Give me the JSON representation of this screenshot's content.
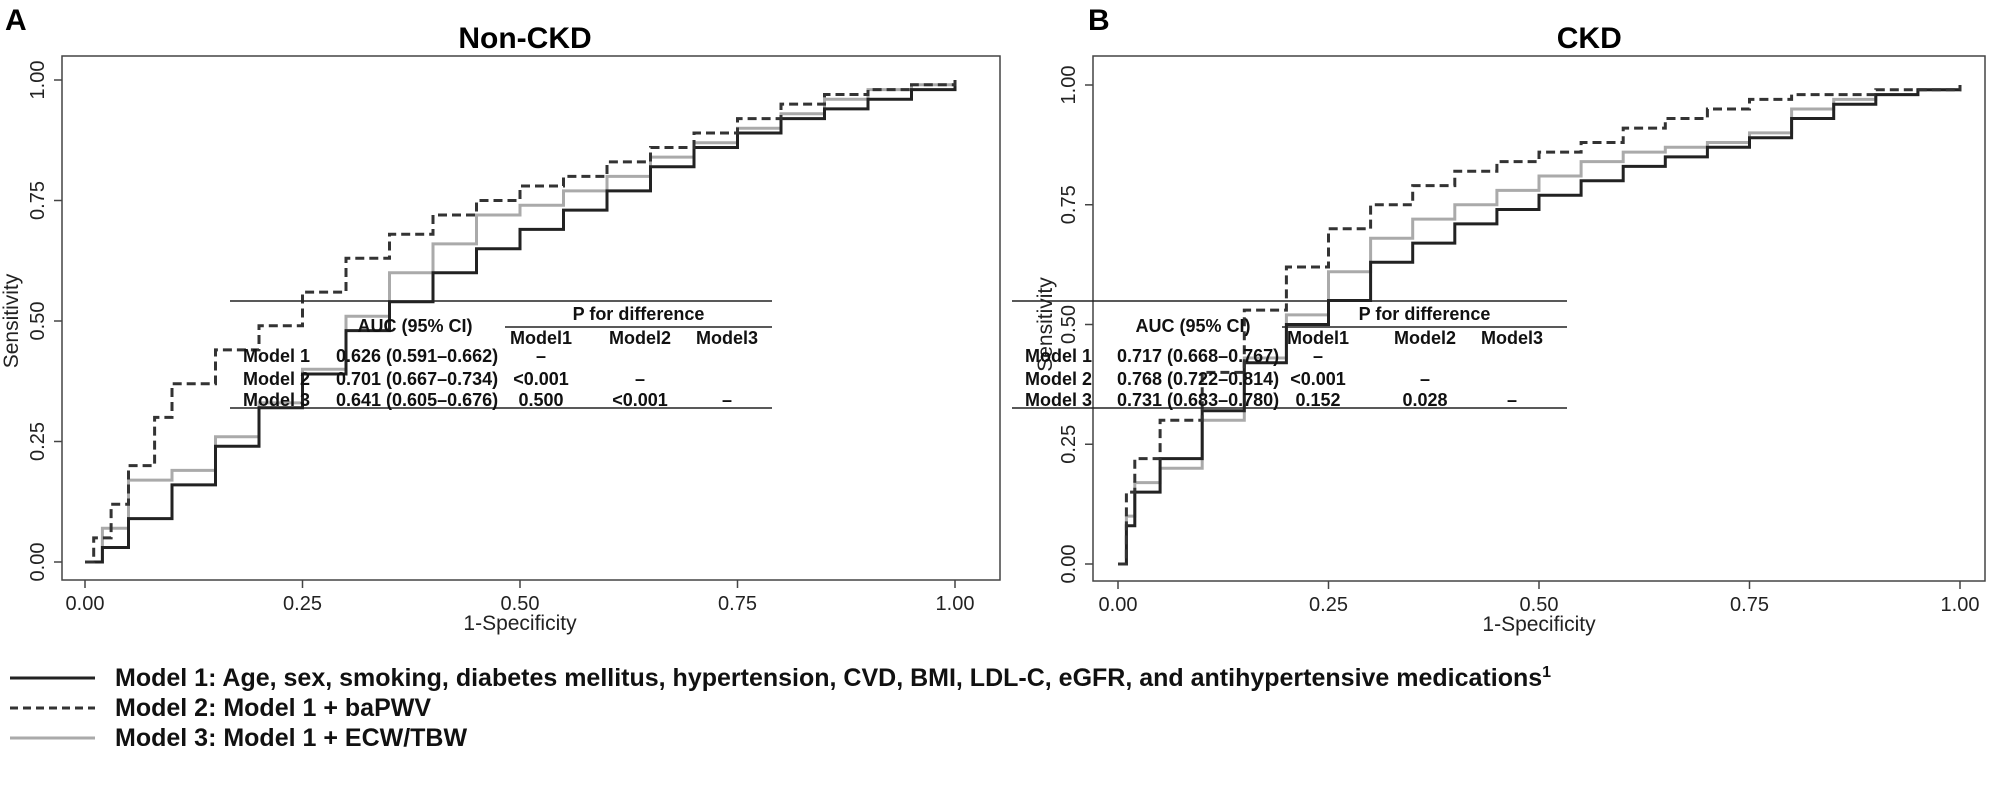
{
  "chart_data": [
    {
      "panel": "A",
      "type": "line",
      "title": "Non-CKD",
      "xlabel": "1-Specificity",
      "ylabel": "Sensitivity",
      "xlim": [
        0,
        1
      ],
      "ylim": [
        0,
        1
      ],
      "xticks": [
        "0.00",
        "0.25",
        "0.50",
        "0.75",
        "1.00"
      ],
      "yticks": [
        "0.00",
        "0.25",
        "0.50",
        "0.75",
        "1.00"
      ],
      "grid": false,
      "series": [
        {
          "name": "Model 1",
          "style": "solid",
          "color": "#222222",
          "points": [
            [
              0,
              0
            ],
            [
              0.02,
              0.03
            ],
            [
              0.05,
              0.09
            ],
            [
              0.1,
              0.16
            ],
            [
              0.15,
              0.24
            ],
            [
              0.2,
              0.32
            ],
            [
              0.25,
              0.39
            ],
            [
              0.3,
              0.48
            ],
            [
              0.35,
              0.54
            ],
            [
              0.4,
              0.6
            ],
            [
              0.45,
              0.65
            ],
            [
              0.5,
              0.69
            ],
            [
              0.55,
              0.73
            ],
            [
              0.6,
              0.77
            ],
            [
              0.65,
              0.82
            ],
            [
              0.7,
              0.86
            ],
            [
              0.75,
              0.89
            ],
            [
              0.8,
              0.92
            ],
            [
              0.85,
              0.94
            ],
            [
              0.9,
              0.96
            ],
            [
              0.95,
              0.98
            ],
            [
              1,
              1
            ]
          ]
        },
        {
          "name": "Model 2",
          "style": "dashed",
          "color": "#333333",
          "points": [
            [
              0,
              0
            ],
            [
              0.01,
              0.05
            ],
            [
              0.03,
              0.12
            ],
            [
              0.05,
              0.2
            ],
            [
              0.08,
              0.3
            ],
            [
              0.1,
              0.37
            ],
            [
              0.15,
              0.44
            ],
            [
              0.2,
              0.49
            ],
            [
              0.25,
              0.56
            ],
            [
              0.3,
              0.63
            ],
            [
              0.35,
              0.68
            ],
            [
              0.4,
              0.72
            ],
            [
              0.45,
              0.75
            ],
            [
              0.5,
              0.78
            ],
            [
              0.55,
              0.8
            ],
            [
              0.6,
              0.83
            ],
            [
              0.65,
              0.86
            ],
            [
              0.7,
              0.89
            ],
            [
              0.75,
              0.92
            ],
            [
              0.8,
              0.95
            ],
            [
              0.85,
              0.97
            ],
            [
              0.9,
              0.98
            ],
            [
              0.95,
              0.99
            ],
            [
              1,
              1
            ]
          ]
        },
        {
          "name": "Model 3",
          "style": "solid",
          "color": "#aaaaaa",
          "points": [
            [
              0,
              0
            ],
            [
              0.02,
              0.07
            ],
            [
              0.05,
              0.17
            ],
            [
              0.1,
              0.19
            ],
            [
              0.15,
              0.26
            ],
            [
              0.2,
              0.33
            ],
            [
              0.25,
              0.4
            ],
            [
              0.3,
              0.51
            ],
            [
              0.35,
              0.6
            ],
            [
              0.4,
              0.66
            ],
            [
              0.45,
              0.72
            ],
            [
              0.5,
              0.74
            ],
            [
              0.55,
              0.77
            ],
            [
              0.6,
              0.8
            ],
            [
              0.65,
              0.84
            ],
            [
              0.7,
              0.87
            ],
            [
              0.75,
              0.9
            ],
            [
              0.8,
              0.93
            ],
            [
              0.85,
              0.96
            ],
            [
              0.9,
              0.98
            ],
            [
              0.95,
              0.99
            ],
            [
              1,
              1
            ]
          ]
        }
      ],
      "table": {
        "auc_header": "AUC (95% CI)",
        "p_header": "P for difference",
        "p_cols": [
          "Model1",
          "Model2",
          "Model3"
        ],
        "rows": [
          {
            "model": "Model 1",
            "auc": "0.626 (0.591–0.662)",
            "p": [
              "–",
              "",
              ""
            ]
          },
          {
            "model": "Model 2",
            "auc": "0.701 (0.667–0.734)",
            "p": [
              "<0.001",
              "–",
              ""
            ]
          },
          {
            "model": "Model 3",
            "auc": "0.641 (0.605–0.676)",
            "p": [
              "0.500",
              "<0.001",
              "–"
            ]
          }
        ]
      }
    },
    {
      "panel": "B",
      "type": "line",
      "title": "CKD",
      "xlabel": "1-Specificity",
      "ylabel": "Sensitivity",
      "xlim": [
        0,
        1
      ],
      "ylim": [
        0,
        1
      ],
      "xticks": [
        "0.00",
        "0.25",
        "0.50",
        "0.75",
        "1.00"
      ],
      "yticks": [
        "0.00",
        "0.25",
        "0.50",
        "0.75",
        "1.00"
      ],
      "grid": false,
      "series": [
        {
          "name": "Model 1",
          "style": "solid",
          "color": "#222222",
          "points": [
            [
              0,
              0
            ],
            [
              0.01,
              0.08
            ],
            [
              0.02,
              0.15
            ],
            [
              0.05,
              0.22
            ],
            [
              0.1,
              0.32
            ],
            [
              0.15,
              0.42
            ],
            [
              0.2,
              0.5
            ],
            [
              0.25,
              0.55
            ],
            [
              0.3,
              0.63
            ],
            [
              0.35,
              0.67
            ],
            [
              0.4,
              0.71
            ],
            [
              0.45,
              0.74
            ],
            [
              0.5,
              0.77
            ],
            [
              0.55,
              0.8
            ],
            [
              0.6,
              0.83
            ],
            [
              0.65,
              0.85
            ],
            [
              0.7,
              0.87
            ],
            [
              0.75,
              0.89
            ],
            [
              0.8,
              0.93
            ],
            [
              0.85,
              0.96
            ],
            [
              0.9,
              0.98
            ],
            [
              0.95,
              0.99
            ],
            [
              1,
              1
            ]
          ]
        },
        {
          "name": "Model 2",
          "style": "dashed",
          "color": "#333333",
          "points": [
            [
              0,
              0
            ],
            [
              0.01,
              0.15
            ],
            [
              0.02,
              0.22
            ],
            [
              0.05,
              0.3
            ],
            [
              0.1,
              0.4
            ],
            [
              0.15,
              0.53
            ],
            [
              0.2,
              0.62
            ],
            [
              0.25,
              0.7
            ],
            [
              0.3,
              0.75
            ],
            [
              0.35,
              0.79
            ],
            [
              0.4,
              0.82
            ],
            [
              0.45,
              0.84
            ],
            [
              0.5,
              0.86
            ],
            [
              0.55,
              0.88
            ],
            [
              0.6,
              0.91
            ],
            [
              0.65,
              0.93
            ],
            [
              0.7,
              0.95
            ],
            [
              0.75,
              0.97
            ],
            [
              0.8,
              0.98
            ],
            [
              0.9,
              0.99
            ],
            [
              1,
              1
            ]
          ]
        },
        {
          "name": "Model 3",
          "style": "solid",
          "color": "#aaaaaa",
          "points": [
            [
              0,
              0
            ],
            [
              0.01,
              0.1
            ],
            [
              0.02,
              0.17
            ],
            [
              0.05,
              0.2
            ],
            [
              0.1,
              0.3
            ],
            [
              0.15,
              0.43
            ],
            [
              0.2,
              0.52
            ],
            [
              0.25,
              0.61
            ],
            [
              0.3,
              0.68
            ],
            [
              0.35,
              0.72
            ],
            [
              0.4,
              0.75
            ],
            [
              0.45,
              0.78
            ],
            [
              0.5,
              0.81
            ],
            [
              0.55,
              0.84
            ],
            [
              0.6,
              0.86
            ],
            [
              0.65,
              0.87
            ],
            [
              0.7,
              0.88
            ],
            [
              0.75,
              0.9
            ],
            [
              0.8,
              0.95
            ],
            [
              0.85,
              0.97
            ],
            [
              0.9,
              0.98
            ],
            [
              0.95,
              0.99
            ],
            [
              1,
              1
            ]
          ]
        }
      ],
      "table": {
        "auc_header": "AUC (95% CI)",
        "p_header": "P for difference",
        "p_cols": [
          "Model1",
          "Model2",
          "Model3"
        ],
        "rows": [
          {
            "model": "Model 1",
            "auc": "0.717 (0.668–0.767)",
            "p": [
              "–",
              "",
              ""
            ]
          },
          {
            "model": "Model 2",
            "auc": "0.768 (0.722–0.814)",
            "p": [
              "<0.001",
              "–",
              ""
            ]
          },
          {
            "model": "Model 3",
            "auc": "0.731 (0.683–0.780)",
            "p": [
              "0.152",
              "0.028",
              "–"
            ]
          }
        ]
      }
    }
  ],
  "legend": [
    {
      "text": "Model 1: Age, sex, smoking, diabetes mellitus, hypertension, CVD, BMI, LDL-C, eGFR, and antihypertensive medications",
      "sup": "1",
      "style": "solid",
      "color": "#222222"
    },
    {
      "text": "Model 2: Model 1 + baPWV",
      "sup": "",
      "style": "dashed",
      "color": "#333333"
    },
    {
      "text": "Model 3: Model 1 + ECW/TBW",
      "sup": "",
      "style": "solid",
      "color": "#aaaaaa"
    }
  ]
}
